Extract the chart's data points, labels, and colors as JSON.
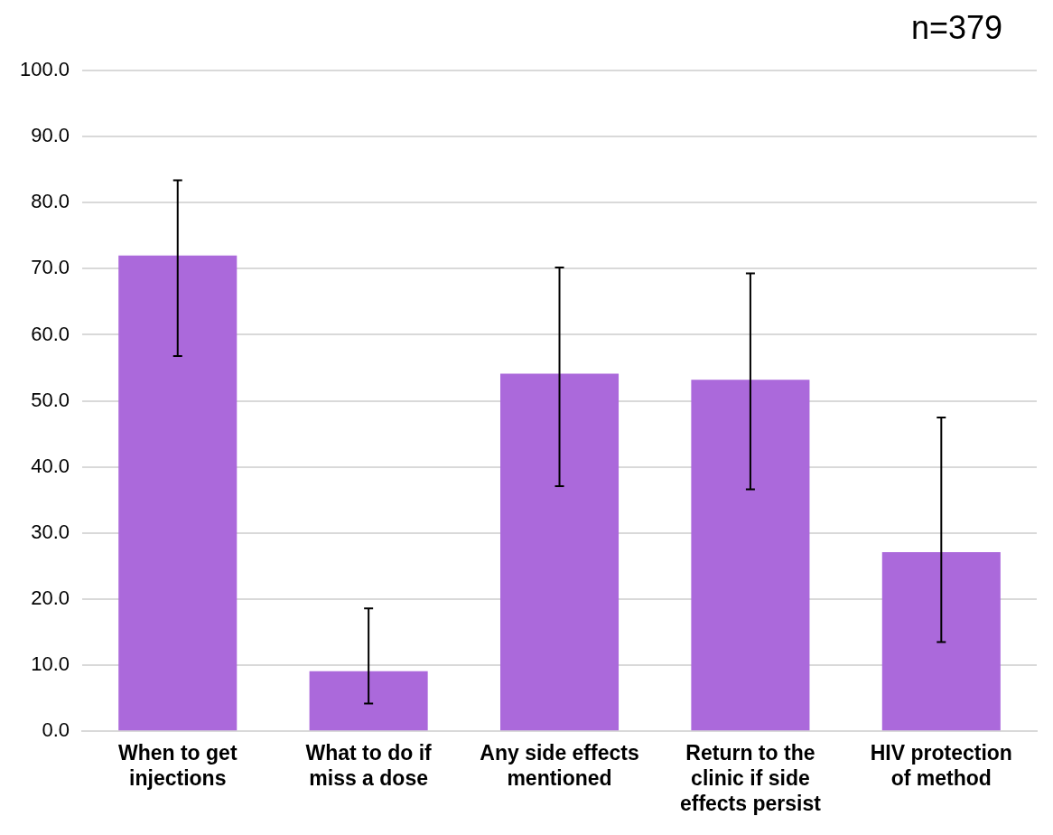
{
  "chart_data": {
    "type": "bar",
    "categories": [
      "When to get injections",
      "What to do if miss a dose",
      "Any side effects mentioned",
      "Return to the clinic if side effects persist",
      "HIV protection of method"
    ],
    "values": [
      72.0,
      9.1,
      54.1,
      53.2,
      27.1
    ],
    "errors": [
      [
        56.8,
        83.4
      ],
      [
        4.2,
        18.6
      ],
      [
        37.1,
        70.2
      ],
      [
        36.6,
        69.3
      ],
      [
        13.5,
        47.5
      ]
    ],
    "color": "#ab69db",
    "ylim": [
      0,
      100
    ],
    "yticks": [
      {
        "value": 0,
        "label": "0.0"
      },
      {
        "value": 10,
        "label": "10.0"
      },
      {
        "value": 20,
        "label": "20.0"
      },
      {
        "value": 30,
        "label": "30.0"
      },
      {
        "value": 40,
        "label": "40.0"
      },
      {
        "value": 50,
        "label": "50.0"
      },
      {
        "value": 60,
        "label": "60.0"
      },
      {
        "value": 70,
        "label": "70.0"
      },
      {
        "value": 80,
        "label": "80.0"
      },
      {
        "value": 90,
        "label": "90.0"
      },
      {
        "value": 100,
        "label": "100.0"
      }
    ],
    "grid": "y",
    "legend": false,
    "annotations": [
      "n=379"
    ]
  }
}
